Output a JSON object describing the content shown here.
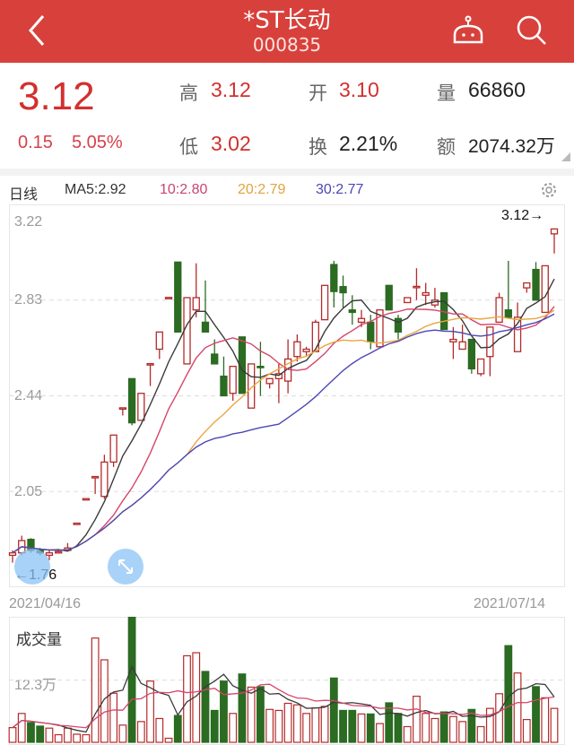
{
  "header": {
    "title": "*ST长动",
    "code": "000835",
    "icons": [
      "back-chevron-icon",
      "robot-icon",
      "search-icon"
    ]
  },
  "quote": {
    "price": "3.12",
    "change": "0.15",
    "change_pct": "5.05%",
    "high_label": "高",
    "high": "3.12",
    "open_label": "开",
    "open": "3.10",
    "volume_label": "量",
    "volume": "66860",
    "low_label": "低",
    "low": "3.02",
    "turnover_label": "换",
    "turnover": "2.21%",
    "amount_label": "额",
    "amount": "2074.32万"
  },
  "ma_row": {
    "period": "日线",
    "ma5": "MA5:2.92",
    "ma10": "10:2.80",
    "ma20": "20:2.79",
    "ma30": "30:2.77"
  },
  "colors": {
    "header": "#d8413b",
    "up": "#b52a2a",
    "down": "#2b6b22",
    "ma5": "#3a3a3a",
    "ma10": "#d6456b",
    "ma20": "#e9a640",
    "ma30": "#4b47b5"
  },
  "chart_data": {
    "type": "candlestick",
    "y_ticks": [
      "3.22",
      "2.83",
      "2.44",
      "2.05"
    ],
    "ylim": [
      1.66,
      3.22
    ],
    "start_date": "2021/04/16",
    "end_date": "2021/07/14",
    "max_marker": "3.12→",
    "min_marker": "←1.76",
    "candles": [
      [
        1.79,
        1.8,
        1.81,
        1.76
      ],
      [
        1.8,
        1.85,
        1.87,
        1.79
      ],
      [
        1.855,
        1.81,
        1.86,
        1.8
      ],
      [
        1.81,
        1.8,
        1.82,
        1.79
      ],
      [
        1.79,
        1.8,
        1.81,
        1.77
      ],
      [
        1.8,
        1.805,
        1.81,
        1.8
      ],
      [
        1.81,
        1.82,
        1.84,
        1.81
      ],
      [
        1.92,
        1.921,
        1.92,
        1.92
      ],
      [
        2.02,
        2.021,
        2.02,
        2.02
      ],
      [
        2.11,
        2.111,
        2.11,
        2.04
      ],
      [
        2.03,
        2.17,
        2.2,
        2.02
      ],
      [
        2.17,
        2.28,
        2.28,
        2.15
      ],
      [
        2.39,
        2.391,
        2.39,
        2.36
      ],
      [
        2.51,
        2.33,
        2.51,
        2.32
      ],
      [
        2.34,
        2.45,
        2.45,
        2.34
      ],
      [
        2.57,
        2.571,
        2.57,
        2.48
      ],
      [
        2.63,
        2.7,
        2.7,
        2.59
      ],
      [
        2.84,
        2.841,
        2.84,
        2.84
      ],
      [
        2.985,
        2.7,
        2.985,
        2.7
      ],
      [
        2.57,
        2.84,
        2.84,
        2.57
      ],
      [
        2.79,
        2.84,
        2.98,
        2.76
      ],
      [
        2.74,
        2.7,
        2.91,
        2.7
      ],
      [
        2.61,
        2.57,
        2.67,
        2.57
      ],
      [
        2.52,
        2.44,
        2.6,
        2.44
      ],
      [
        2.45,
        2.56,
        2.56,
        2.42
      ],
      [
        2.68,
        2.45,
        2.68,
        2.45
      ],
      [
        2.39,
        2.57,
        2.57,
        2.39
      ],
      [
        2.56,
        2.555,
        2.66,
        2.44
      ],
      [
        2.49,
        2.51,
        2.51,
        2.47
      ],
      [
        2.51,
        2.53,
        2.57,
        2.41
      ],
      [
        2.5,
        2.59,
        2.67,
        2.45
      ],
      [
        2.6,
        2.66,
        2.69,
        2.58
      ],
      [
        2.62,
        2.63,
        2.64,
        2.6
      ],
      [
        2.62,
        2.74,
        2.75,
        2.62
      ],
      [
        2.75,
        2.89,
        2.89,
        2.75
      ],
      [
        2.975,
        2.865,
        2.99,
        2.8
      ],
      [
        2.885,
        2.86,
        2.93,
        2.8
      ],
      [
        2.79,
        2.78,
        2.85,
        2.73
      ],
      [
        2.74,
        2.755,
        2.79,
        2.72
      ],
      [
        2.74,
        2.66,
        2.77,
        2.63
      ],
      [
        2.64,
        2.79,
        2.79,
        2.64
      ],
      [
        2.89,
        2.79,
        2.89,
        2.79
      ],
      [
        2.755,
        2.7,
        2.77,
        2.67
      ],
      [
        2.82,
        2.84,
        2.84,
        2.82
      ],
      [
        2.885,
        2.886,
        2.96,
        2.83
      ],
      [
        2.85,
        2.86,
        2.9,
        2.81
      ],
      [
        2.81,
        2.83,
        2.88,
        2.8
      ],
      [
        2.86,
        2.71,
        2.86,
        2.71
      ],
      [
        2.66,
        2.67,
        2.72,
        2.59
      ],
      [
        2.63,
        2.66,
        2.73,
        2.63
      ],
      [
        2.67,
        2.55,
        2.67,
        2.53
      ],
      [
        2.53,
        2.59,
        2.59,
        2.52
      ],
      [
        2.6,
        2.72,
        2.72,
        2.52
      ],
      [
        2.74,
        2.84,
        2.86,
        2.74
      ],
      [
        2.79,
        2.76,
        2.99,
        2.76
      ],
      [
        2.62,
        2.76,
        2.82,
        2.62
      ],
      [
        2.88,
        2.9,
        2.9,
        2.86
      ],
      [
        2.955,
        2.83,
        2.985,
        2.83
      ],
      [
        2.78,
        2.97,
        2.97,
        2.78
      ],
      [
        3.1,
        3.12,
        3.12,
        3.02
      ]
    ],
    "candle_fields": [
      "open",
      "close",
      "high",
      "low"
    ],
    "volume": {
      "label": "成交量",
      "tick": "12.3万",
      "tick_value": 12.3,
      "unit": "万",
      "ylim": [
        0,
        24.8
      ],
      "values": [
        2.9,
        5.7,
        3.9,
        3.2,
        2.8,
        1.5,
        2.8,
        1.6,
        1.5,
        20.6,
        16.3,
        9.7,
        3.4,
        24.7,
        4.1,
        12.1,
        4.7,
        0.8,
        5.3,
        17.1,
        17.7,
        14.0,
        6.3,
        12.1,
        5.7,
        13.5,
        10.9,
        11.0,
        6.5,
        6.3,
        7.7,
        7.4,
        5.7,
        6.8,
        7.1,
        12.7,
        6.3,
        6.3,
        5.6,
        5.6,
        3.7,
        7.8,
        5.7,
        3.1,
        9.1,
        5.7,
        4.7,
        6.0,
        5.1,
        4.1,
        6.5,
        3.1,
        6.7,
        9.6,
        19.1,
        13.7,
        4.5,
        11.0,
        8.8,
        6.7
      ]
    }
  }
}
